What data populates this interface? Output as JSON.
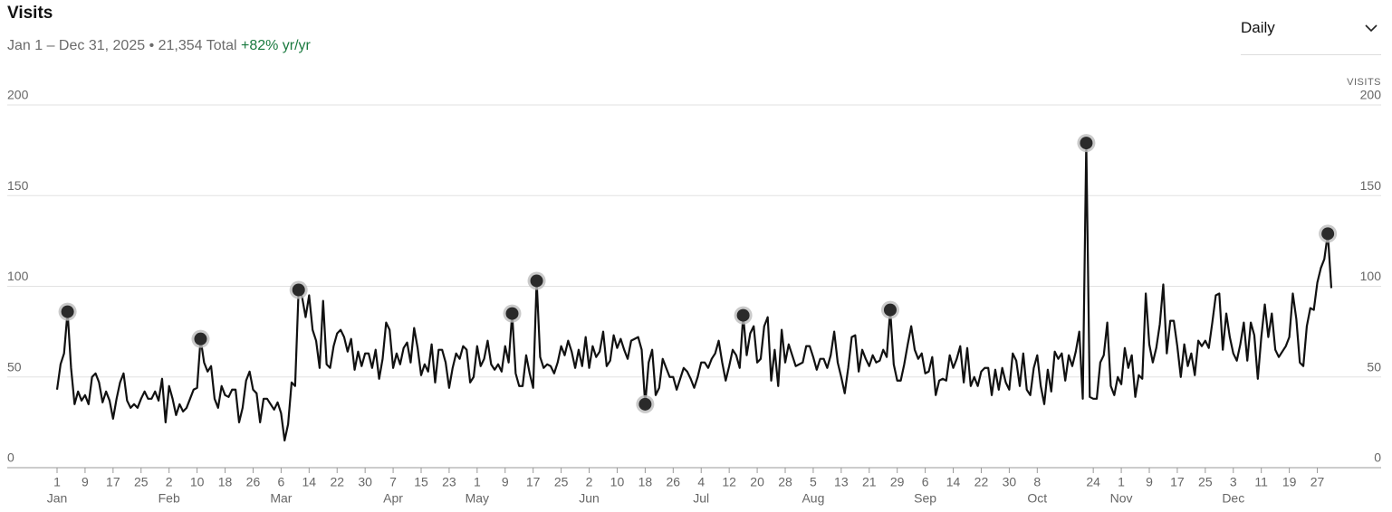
{
  "header": {
    "title": "Visits",
    "date_range": "Jan 1 – Dec 31, 2025",
    "separator": "•",
    "total": "21,354 Total",
    "change": "+82% yr/yr",
    "period_select": "Daily"
  },
  "chart_data": {
    "type": "line",
    "y_axis_label": "VISITS",
    "color": "#111111",
    "grid": true,
    "xlim": [
      1,
      365
    ],
    "ylim": [
      0,
      200
    ],
    "yticks": [
      0,
      50,
      100,
      150,
      200
    ],
    "xticks": [
      {
        "value": 1,
        "label": "1"
      },
      {
        "value": 9,
        "label": "9"
      },
      {
        "value": 17,
        "label": "17"
      },
      {
        "value": 25,
        "label": "25"
      },
      {
        "value": 33,
        "label": "2"
      },
      {
        "value": 41,
        "label": "10"
      },
      {
        "value": 49,
        "label": "18"
      },
      {
        "value": 57,
        "label": "26"
      },
      {
        "value": 65,
        "label": "6"
      },
      {
        "value": 73,
        "label": "14"
      },
      {
        "value": 81,
        "label": "22"
      },
      {
        "value": 89,
        "label": "30"
      },
      {
        "value": 97,
        "label": "7"
      },
      {
        "value": 105,
        "label": "15"
      },
      {
        "value": 113,
        "label": "23"
      },
      {
        "value": 121,
        "label": "1"
      },
      {
        "value": 129,
        "label": "9"
      },
      {
        "value": 137,
        "label": "17"
      },
      {
        "value": 145,
        "label": "25"
      },
      {
        "value": 153,
        "label": "2"
      },
      {
        "value": 161,
        "label": "10"
      },
      {
        "value": 169,
        "label": "18"
      },
      {
        "value": 177,
        "label": "26"
      },
      {
        "value": 185,
        "label": "4"
      },
      {
        "value": 193,
        "label": "12"
      },
      {
        "value": 201,
        "label": "20"
      },
      {
        "value": 209,
        "label": "28"
      },
      {
        "value": 217,
        "label": "5"
      },
      {
        "value": 225,
        "label": "13"
      },
      {
        "value": 233,
        "label": "21"
      },
      {
        "value": 241,
        "label": "29"
      },
      {
        "value": 249,
        "label": "6"
      },
      {
        "value": 257,
        "label": "14"
      },
      {
        "value": 265,
        "label": "22"
      },
      {
        "value": 273,
        "label": "30"
      },
      {
        "value": 281,
        "label": "8"
      },
      {
        "value": 297,
        "label": "24"
      },
      {
        "value": 305,
        "label": "1"
      },
      {
        "value": 313,
        "label": "9"
      },
      {
        "value": 321,
        "label": "17"
      },
      {
        "value": 329,
        "label": "25"
      },
      {
        "value": 337,
        "label": "3"
      },
      {
        "value": 345,
        "label": "11"
      },
      {
        "value": 353,
        "label": "19"
      },
      {
        "value": 361,
        "label": "27"
      }
    ],
    "month_labels": [
      {
        "value": 1,
        "label": "Jan"
      },
      {
        "value": 33,
        "label": "Feb"
      },
      {
        "value": 65,
        "label": "Mar"
      },
      {
        "value": 97,
        "label": "Apr"
      },
      {
        "value": 121,
        "label": "May"
      },
      {
        "value": 153,
        "label": "Jun"
      },
      {
        "value": 185,
        "label": "Jul"
      },
      {
        "value": 217,
        "label": "Aug"
      },
      {
        "value": 249,
        "label": "Sep"
      },
      {
        "value": 281,
        "label": "Oct"
      },
      {
        "value": 305,
        "label": "Nov"
      },
      {
        "value": 337,
        "label": "Dec"
      }
    ],
    "highlights": [
      4,
      42,
      70,
      131,
      138,
      169,
      197,
      239,
      295,
      364
    ],
    "x": [
      1,
      2,
      3,
      4,
      5,
      6,
      7,
      8,
      9,
      10,
      11,
      12,
      13,
      14,
      15,
      16,
      17,
      18,
      19,
      20,
      21,
      22,
      23,
      24,
      25,
      26,
      27,
      28,
      29,
      30,
      31,
      32,
      33,
      34,
      35,
      36,
      37,
      38,
      39,
      40,
      41,
      42,
      43,
      44,
      45,
      46,
      47,
      48,
      49,
      50,
      51,
      52,
      53,
      54,
      55,
      56,
      57,
      58,
      59,
      60,
      61,
      62,
      63,
      64,
      65,
      66,
      67,
      68,
      69,
      70,
      71,
      72,
      73,
      74,
      75,
      76,
      77,
      78,
      79,
      80,
      81,
      82,
      83,
      84,
      85,
      86,
      87,
      88,
      89,
      90,
      91,
      92,
      93,
      94,
      95,
      96,
      97,
      98,
      99,
      100,
      101,
      102,
      103,
      104,
      105,
      106,
      107,
      108,
      109,
      110,
      111,
      112,
      113,
      114,
      115,
      116,
      117,
      118,
      119,
      120,
      121,
      122,
      123,
      124,
      125,
      126,
      127,
      128,
      129,
      130,
      131,
      132,
      133,
      134,
      135,
      136,
      137,
      138,
      139,
      140,
      141,
      142,
      143,
      144,
      145,
      146,
      147,
      148,
      149,
      150,
      151,
      152,
      153,
      154,
      155,
      156,
      157,
      158,
      159,
      160,
      161,
      162,
      163,
      164,
      165,
      166,
      167,
      168,
      169,
      170,
      171,
      172,
      173,
      174,
      175,
      176,
      177,
      178,
      179,
      180,
      181,
      182,
      183,
      184,
      185,
      186,
      187,
      188,
      189,
      190,
      191,
      192,
      193,
      194,
      195,
      196,
      197,
      198,
      199,
      200,
      201,
      202,
      203,
      204,
      205,
      206,
      207,
      208,
      209,
      210,
      211,
      212,
      213,
      214,
      215,
      216,
      217,
      218,
      219,
      220,
      221,
      222,
      223,
      224,
      225,
      226,
      227,
      228,
      229,
      230,
      231,
      232,
      233,
      234,
      235,
      236,
      237,
      238,
      239,
      240,
      241,
      242,
      243,
      244,
      245,
      246,
      247,
      248,
      249,
      250,
      251,
      252,
      253,
      254,
      255,
      256,
      257,
      258,
      259,
      260,
      261,
      262,
      263,
      264,
      265,
      266,
      267,
      268,
      269,
      270,
      271,
      272,
      273,
      274,
      275,
      276,
      277,
      278,
      279,
      280,
      281,
      282,
      283,
      284,
      285,
      286,
      287,
      288,
      289,
      290,
      291,
      292,
      293,
      294,
      295,
      296,
      297,
      298,
      299,
      300,
      301,
      302,
      303,
      304,
      305,
      306,
      307,
      308,
      309,
      310,
      311,
      312,
      313,
      314,
      315,
      316,
      317,
      318,
      319,
      320,
      321,
      322,
      323,
      324,
      325,
      326,
      327,
      328,
      329,
      330,
      331,
      332,
      333,
      334,
      335,
      336,
      337,
      338,
      339,
      340,
      341,
      342,
      343,
      344,
      345,
      346,
      347,
      348,
      349,
      350,
      351,
      352,
      353,
      354,
      355,
      356,
      357,
      358,
      359,
      360,
      361,
      362,
      363,
      364,
      365
    ],
    "values": [
      43,
      57,
      63,
      86,
      55,
      35,
      42,
      37,
      40,
      35,
      50,
      52,
      47,
      36,
      42,
      37,
      27,
      38,
      47,
      52,
      37,
      33,
      35,
      33,
      38,
      42,
      38,
      38,
      42,
      37,
      49,
      25,
      45,
      38,
      29,
      35,
      31,
      33,
      38,
      43,
      44,
      71,
      58,
      53,
      56,
      38,
      33,
      45,
      40,
      39,
      43,
      43,
      25,
      33,
      48,
      53,
      43,
      41,
      25,
      38,
      38,
      35,
      32,
      36,
      30,
      15,
      24,
      47,
      45,
      98,
      94,
      83,
      95,
      76,
      70,
      55,
      92,
      57,
      55,
      67,
      74,
      76,
      72,
      64,
      71,
      54,
      64,
      56,
      63,
      63,
      55,
      65,
      49,
      60,
      80,
      76,
      55,
      63,
      57,
      66,
      69,
      58,
      77,
      66,
      51,
      57,
      53,
      68,
      47,
      65,
      65,
      58,
      44,
      55,
      63,
      60,
      67,
      65,
      47,
      50,
      67,
      56,
      60,
      70,
      57,
      54,
      57,
      53,
      67,
      58,
      85,
      52,
      45,
      45,
      62,
      52,
      44,
      103,
      61,
      55,
      57,
      56,
      52,
      58,
      67,
      62,
      70,
      64,
      55,
      65,
      56,
      72,
      55,
      67,
      61,
      64,
      75,
      56,
      59,
      73,
      66,
      71,
      65,
      60,
      70,
      71,
      72,
      65,
      35,
      58,
      65,
      40,
      44,
      60,
      55,
      50,
      50,
      43,
      49,
      55,
      53,
      49,
      44,
      50,
      58,
      58,
      55,
      60,
      63,
      70,
      58,
      48,
      56,
      65,
      62,
      55,
      84,
      62,
      74,
      78,
      58,
      60,
      78,
      83,
      48,
      65,
      45,
      76,
      58,
      68,
      62,
      56,
      57,
      58,
      67,
      67,
      61,
      54,
      60,
      60,
      55,
      62,
      75,
      58,
      50,
      41,
      55,
      72,
      73,
      53,
      65,
      60,
      56,
      62,
      58,
      59,
      65,
      61,
      87,
      57,
      48,
      48,
      57,
      68,
      78,
      65,
      60,
      63,
      52,
      53,
      61,
      40,
      48,
      49,
      48,
      62,
      55,
      60,
      67,
      47,
      66,
      45,
      50,
      45,
      53,
      55,
      55,
      40,
      54,
      43,
      55,
      47,
      43,
      63,
      59,
      45,
      63,
      43,
      40,
      55,
      62,
      45,
      35,
      54,
      42,
      64,
      60,
      63,
      48,
      62,
      56,
      64,
      75,
      38,
      179,
      39,
      38,
      38,
      58,
      62,
      80,
      45,
      40,
      50,
      46,
      66,
      55,
      62,
      39,
      51,
      49,
      96,
      68,
      58,
      66,
      79,
      101,
      63,
      81,
      81,
      67,
      50,
      68,
      56,
      63,
      51,
      70,
      67,
      70,
      66,
      80,
      95,
      96,
      65,
      85,
      72,
      63,
      59,
      68,
      80,
      59,
      80,
      73,
      49,
      72,
      90,
      72,
      85,
      65,
      61,
      64,
      67,
      72,
      96,
      82,
      58,
      56,
      78,
      88,
      87,
      102,
      110,
      115,
      129,
      99
    ]
  }
}
